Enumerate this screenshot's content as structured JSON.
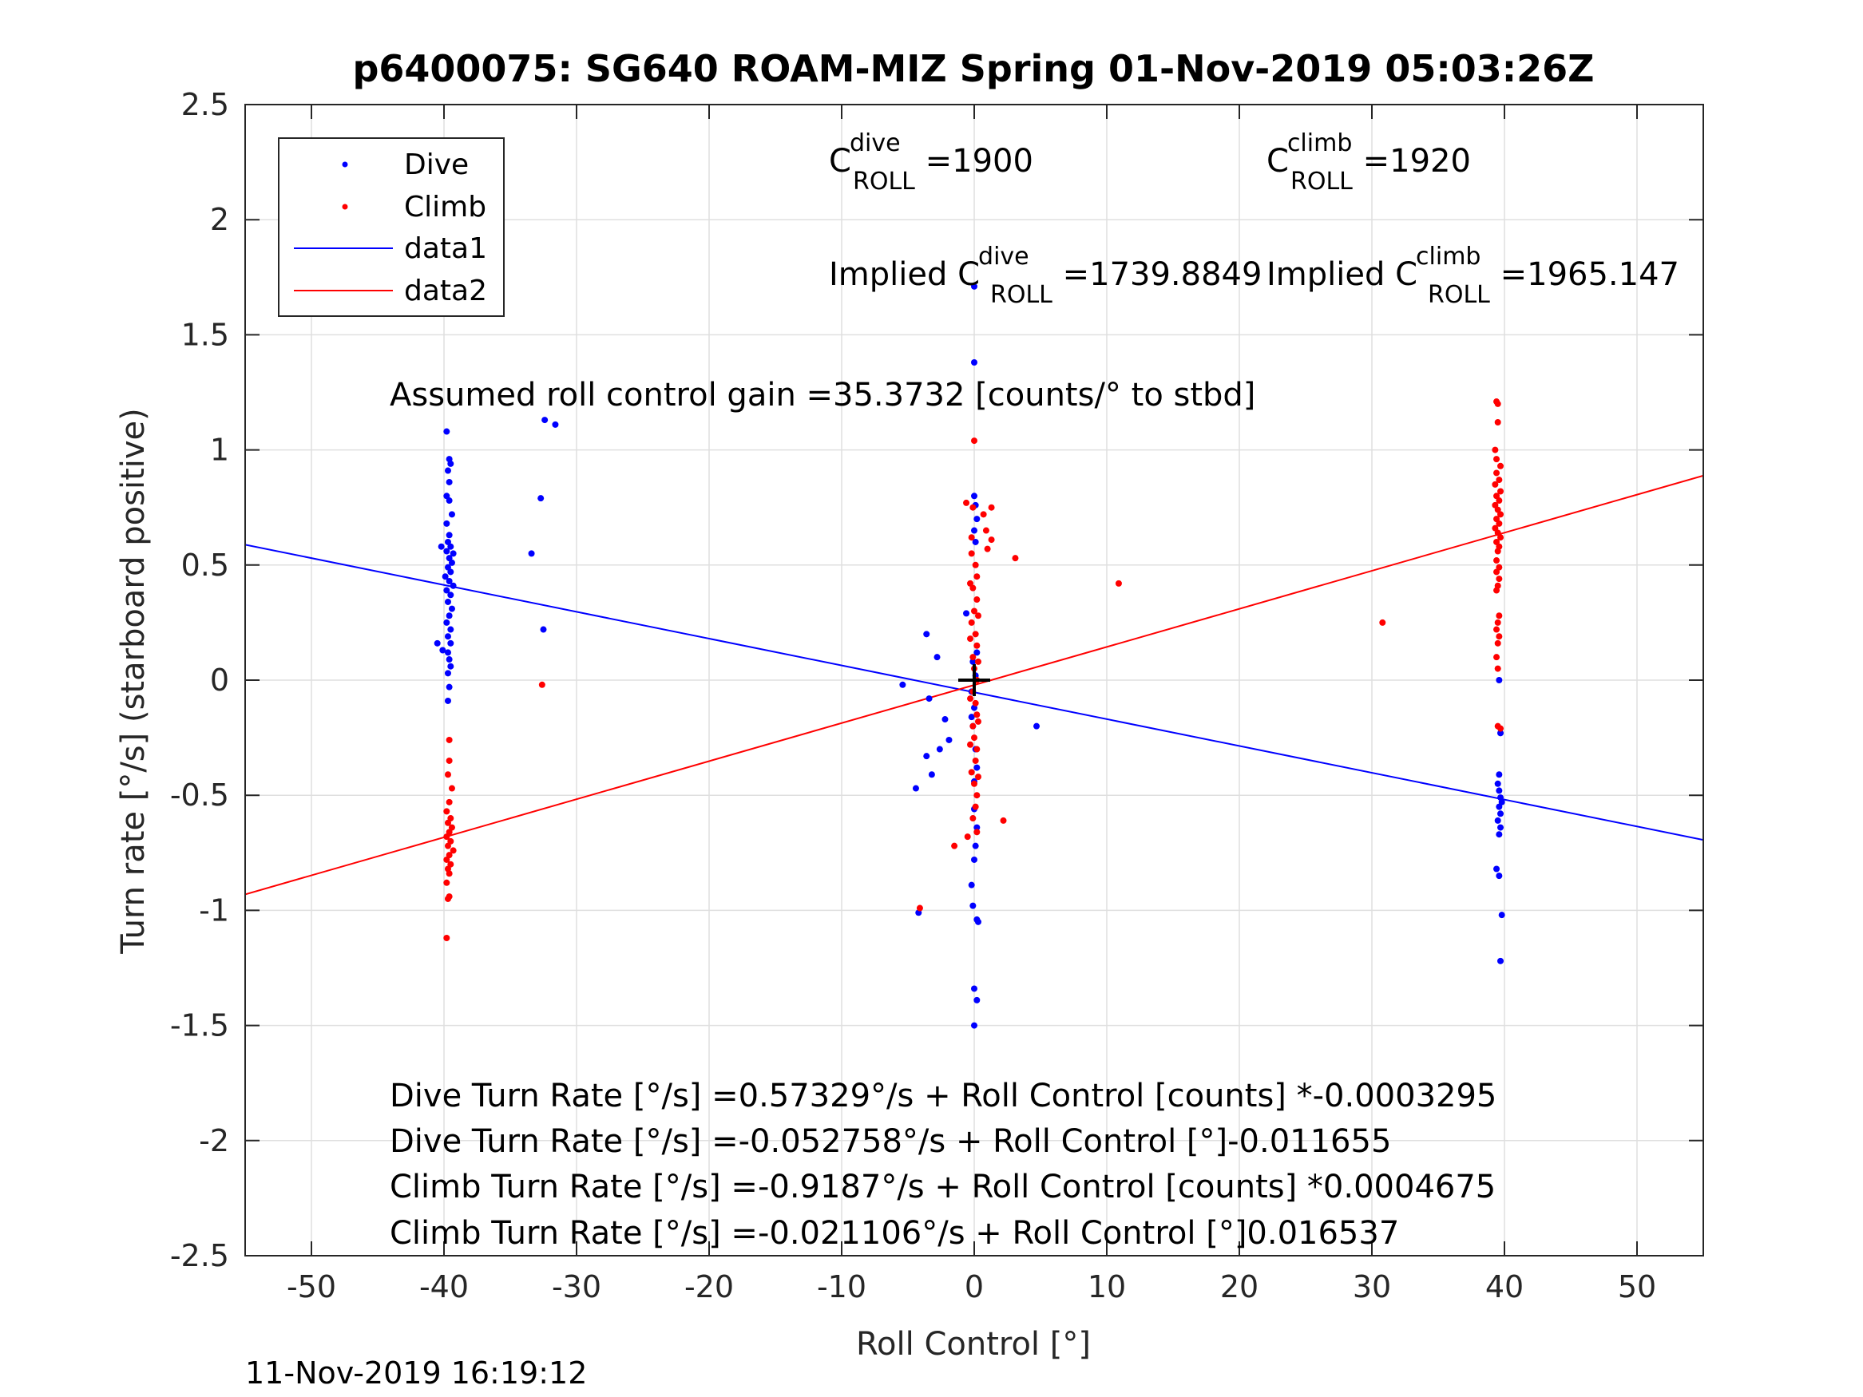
{
  "chart_data": {
    "type": "scatter",
    "title": "p6400075: SG640 ROAM-MIZ Spring 01-Nov-2019 05:03:26Z",
    "xlabel": "Roll Control [°]",
    "ylabel": "Turn rate [°/s] (starboard positive)",
    "xlim": [
      -55,
      55
    ],
    "ylim": [
      -2.5,
      2.5
    ],
    "xticks": [
      -50,
      -40,
      -30,
      -20,
      -10,
      0,
      10,
      20,
      30,
      40,
      50
    ],
    "yticks": [
      -2.5,
      -2,
      -1.5,
      -1,
      -0.5,
      0,
      0.5,
      1,
      1.5,
      2,
      2.5
    ],
    "grid": true,
    "legend": {
      "location": "top-left",
      "entries": [
        {
          "label": "Dive",
          "kind": "marker",
          "color": "#0000ff"
        },
        {
          "label": "Climb",
          "kind": "marker",
          "color": "#ff0000"
        },
        {
          "label": "data1",
          "kind": "line",
          "color": "#0000ff"
        },
        {
          "label": "data2",
          "kind": "line",
          "color": "#ff0000"
        }
      ]
    },
    "series": [
      {
        "name": "Dive",
        "color": "#0000ff",
        "points": [
          [
            -39.8,
            1.08
          ],
          [
            -39.6,
            0.96
          ],
          [
            -39.5,
            0.94
          ],
          [
            -39.7,
            0.91
          ],
          [
            -39.6,
            0.86
          ],
          [
            -39.8,
            0.8
          ],
          [
            -39.6,
            0.78
          ],
          [
            -39.4,
            0.72
          ],
          [
            -39.8,
            0.68
          ],
          [
            -39.6,
            0.63
          ],
          [
            -39.7,
            0.6
          ],
          [
            -39.5,
            0.58
          ],
          [
            -39.8,
            0.56
          ],
          [
            -39.3,
            0.55
          ],
          [
            -39.6,
            0.53
          ],
          [
            -39.4,
            0.51
          ],
          [
            -39.7,
            0.49
          ],
          [
            -39.5,
            0.47
          ],
          [
            -39.9,
            0.45
          ],
          [
            -39.6,
            0.43
          ],
          [
            -39.3,
            0.41
          ],
          [
            -39.8,
            0.39
          ],
          [
            -39.5,
            0.37
          ],
          [
            -39.7,
            0.34
          ],
          [
            -39.4,
            0.31
          ],
          [
            -39.6,
            0.28
          ],
          [
            -39.8,
            0.25
          ],
          [
            -39.5,
            0.22
          ],
          [
            -39.7,
            0.19
          ],
          [
            -39.5,
            0.16
          ],
          [
            -39.7,
            0.12
          ],
          [
            -39.6,
            0.09
          ],
          [
            -39.5,
            0.06
          ],
          [
            -39.7,
            0.03
          ],
          [
            -39.6,
            -0.03
          ],
          [
            -39.7,
            -0.09
          ],
          [
            -40.2,
            0.58
          ],
          [
            -40.5,
            0.16
          ],
          [
            -40.1,
            0.13
          ],
          [
            -32.4,
            1.13
          ],
          [
            -31.6,
            1.11
          ],
          [
            -32.7,
            0.79
          ],
          [
            -33.4,
            0.55
          ],
          [
            -32.5,
            0.22
          ],
          [
            -5.4,
            -0.02
          ],
          [
            -3.6,
            0.2
          ],
          [
            -3.4,
            -0.08
          ],
          [
            -2.8,
            0.1
          ],
          [
            -2.2,
            -0.17
          ],
          [
            -1.9,
            -0.26
          ],
          [
            -2.6,
            -0.3
          ],
          [
            -3.6,
            -0.33
          ],
          [
            -3.2,
            -0.41
          ],
          [
            -4.4,
            -0.47
          ],
          [
            -4.2,
            -1.01
          ],
          [
            -0.6,
            0.29
          ],
          [
            -0.2,
            -0.05
          ],
          [
            -0.1,
            0.08
          ],
          [
            0.2,
            0.12
          ],
          [
            0.1,
            0.02
          ],
          [
            0.0,
            -0.12
          ],
          [
            -0.1,
            -0.2
          ],
          [
            0.1,
            -0.3
          ],
          [
            0.2,
            -0.38
          ],
          [
            0.0,
            -0.44
          ],
          [
            -0.2,
            -0.16
          ],
          [
            0.0,
            1.71
          ],
          [
            0.0,
            1.38
          ],
          [
            0.0,
            0.8
          ],
          [
            0.1,
            0.76
          ],
          [
            0.2,
            0.7
          ],
          [
            0.0,
            0.65
          ],
          [
            0.1,
            0.6
          ],
          [
            0.0,
            -0.56
          ],
          [
            0.2,
            -0.64
          ],
          [
            0.1,
            -0.72
          ],
          [
            0.0,
            -0.78
          ],
          [
            -0.2,
            -0.89
          ],
          [
            -0.1,
            -0.98
          ],
          [
            0.2,
            -1.04
          ],
          [
            0.3,
            -1.05
          ],
          [
            0.0,
            -1.34
          ],
          [
            0.2,
            -1.39
          ],
          [
            0.0,
            -1.5
          ],
          [
            4.7,
            -0.2
          ],
          [
            39.6,
            0.0
          ],
          [
            39.7,
            -0.23
          ],
          [
            39.6,
            -0.41
          ],
          [
            39.5,
            -0.45
          ],
          [
            39.6,
            -0.48
          ],
          [
            39.7,
            -0.51
          ],
          [
            39.8,
            -0.53
          ],
          [
            39.6,
            -0.55
          ],
          [
            39.7,
            -0.58
          ],
          [
            39.5,
            -0.61
          ],
          [
            39.7,
            -0.64
          ],
          [
            39.6,
            -0.67
          ],
          [
            39.4,
            -0.82
          ],
          [
            39.6,
            -0.85
          ],
          [
            39.8,
            -1.02
          ],
          [
            39.7,
            -1.22
          ]
        ]
      },
      {
        "name": "Climb",
        "color": "#ff0000",
        "points": [
          [
            -39.6,
            -0.26
          ],
          [
            -39.6,
            -0.35
          ],
          [
            -39.7,
            -0.41
          ],
          [
            -39.4,
            -0.47
          ],
          [
            -39.6,
            -0.53
          ],
          [
            -39.8,
            -0.57
          ],
          [
            -39.5,
            -0.6
          ],
          [
            -39.7,
            -0.62
          ],
          [
            -39.4,
            -0.64
          ],
          [
            -39.6,
            -0.66
          ],
          [
            -39.8,
            -0.68
          ],
          [
            -39.5,
            -0.7
          ],
          [
            -39.7,
            -0.72
          ],
          [
            -39.3,
            -0.74
          ],
          [
            -39.6,
            -0.76
          ],
          [
            -39.8,
            -0.78
          ],
          [
            -39.5,
            -0.8
          ],
          [
            -39.7,
            -0.82
          ],
          [
            -39.6,
            -0.84
          ],
          [
            -39.8,
            -0.88
          ],
          [
            -39.6,
            -0.94
          ],
          [
            -39.7,
            -0.95
          ],
          [
            -39.8,
            -1.12
          ],
          [
            -32.6,
            -0.02
          ],
          [
            -4.1,
            -0.99
          ],
          [
            -1.5,
            -0.72
          ],
          [
            -0.5,
            -0.68
          ],
          [
            -0.6,
            0.77
          ],
          [
            -0.1,
            0.75
          ],
          [
            0.7,
            0.72
          ],
          [
            1.3,
            0.75
          ],
          [
            0.9,
            0.65
          ],
          [
            1.3,
            0.61
          ],
          [
            1.0,
            0.57
          ],
          [
            3.1,
            0.53
          ],
          [
            2.2,
            -0.61
          ],
          [
            10.9,
            0.42
          ],
          [
            30.8,
            0.25
          ],
          [
            -0.2,
            0.55
          ],
          [
            0.1,
            0.5
          ],
          [
            0.2,
            0.45
          ],
          [
            -0.1,
            0.4
          ],
          [
            0.2,
            0.35
          ],
          [
            0.0,
            0.3
          ],
          [
            -0.2,
            0.25
          ],
          [
            0.1,
            0.2
          ],
          [
            0.2,
            0.15
          ],
          [
            -0.1,
            0.1
          ],
          [
            0.0,
            0.05
          ],
          [
            0.2,
            0.0
          ],
          [
            -0.1,
            -0.05
          ],
          [
            0.1,
            -0.1
          ],
          [
            0.2,
            -0.15
          ],
          [
            -0.1,
            -0.2
          ],
          [
            0.0,
            -0.25
          ],
          [
            0.2,
            -0.3
          ],
          [
            0.1,
            -0.35
          ],
          [
            -0.2,
            -0.4
          ],
          [
            0.0,
            -0.45
          ],
          [
            0.2,
            -0.5
          ],
          [
            0.1,
            -0.55
          ],
          [
            -0.1,
            -0.6
          ],
          [
            -0.3,
            0.42
          ],
          [
            0.3,
            0.28
          ],
          [
            -0.3,
            0.18
          ],
          [
            0.3,
            0.08
          ],
          [
            -0.3,
            -0.08
          ],
          [
            0.3,
            -0.18
          ],
          [
            -0.3,
            -0.28
          ],
          [
            0.3,
            -0.42
          ],
          [
            -0.2,
            0.62
          ],
          [
            0.2,
            -0.66
          ],
          [
            0.0,
            1.04
          ],
          [
            39.4,
            1.21
          ],
          [
            39.5,
            1.2
          ],
          [
            39.5,
            1.12
          ],
          [
            39.3,
            1.0
          ],
          [
            39.4,
            0.96
          ],
          [
            39.7,
            0.93
          ],
          [
            39.4,
            0.9
          ],
          [
            39.6,
            0.87
          ],
          [
            39.3,
            0.85
          ],
          [
            39.7,
            0.82
          ],
          [
            39.4,
            0.8
          ],
          [
            39.6,
            0.78
          ],
          [
            39.3,
            0.76
          ],
          [
            39.5,
            0.74
          ],
          [
            39.7,
            0.72
          ],
          [
            39.4,
            0.7
          ],
          [
            39.6,
            0.68
          ],
          [
            39.3,
            0.66
          ],
          [
            39.5,
            0.64
          ],
          [
            39.7,
            0.62
          ],
          [
            39.4,
            0.6
          ],
          [
            39.6,
            0.58
          ],
          [
            39.5,
            0.56
          ],
          [
            39.4,
            0.52
          ],
          [
            39.6,
            0.49
          ],
          [
            39.4,
            0.47
          ],
          [
            39.6,
            0.44
          ],
          [
            39.5,
            0.41
          ],
          [
            39.4,
            0.39
          ],
          [
            39.6,
            0.28
          ],
          [
            39.5,
            0.25
          ],
          [
            39.4,
            0.22
          ],
          [
            39.6,
            0.19
          ],
          [
            39.5,
            0.16
          ],
          [
            39.4,
            0.1
          ],
          [
            39.5,
            0.05
          ],
          [
            39.5,
            -0.2
          ],
          [
            39.7,
            -0.21
          ]
        ]
      }
    ],
    "fits": [
      {
        "name": "data1",
        "color": "#0000ff",
        "intercept": -0.052758,
        "slope": -0.011655
      },
      {
        "name": "data2",
        "color": "#ff0000",
        "intercept": -0.021106,
        "slope": 0.016537
      }
    ],
    "crosshair": {
      "x": 0,
      "y": 0
    },
    "annotations": {
      "c_dive_base": "C",
      "c_dive_sup": "dive",
      "c_dive_sub": "ROLL",
      "c_dive_val": " =1900",
      "c_climb_base": "C",
      "c_climb_sup": "climb",
      "c_climb_sub": "ROLL",
      "c_climb_val": " =1920",
      "implied_dive_base": "Implied C",
      "implied_dive_sup": "dive",
      "implied_dive_sub": "ROLL",
      "implied_dive_val": " =1739.8849",
      "implied_climb_base": "Implied C",
      "implied_climb_sup": "climb",
      "implied_climb_sub": "ROLL",
      "implied_climb_val": " =1965.147",
      "gain": "Assumed roll control gain =35.3732 [counts/° to stbd]",
      "eq1": "Dive Turn Rate [°/s] =0.57329°/s + Roll Control [counts] *-0.0003295",
      "eq2": "Dive Turn Rate [°/s] =-0.052758°/s + Roll Control [°]-0.011655",
      "eq3": "Climb Turn Rate [°/s] =-0.9187°/s + Roll Control [counts] *0.0004675",
      "eq4": "Climb Turn Rate [°/s] =-0.021106°/s + Roll Control [°]0.016537"
    },
    "timestamp": "11-Nov-2019 16:19:12"
  }
}
